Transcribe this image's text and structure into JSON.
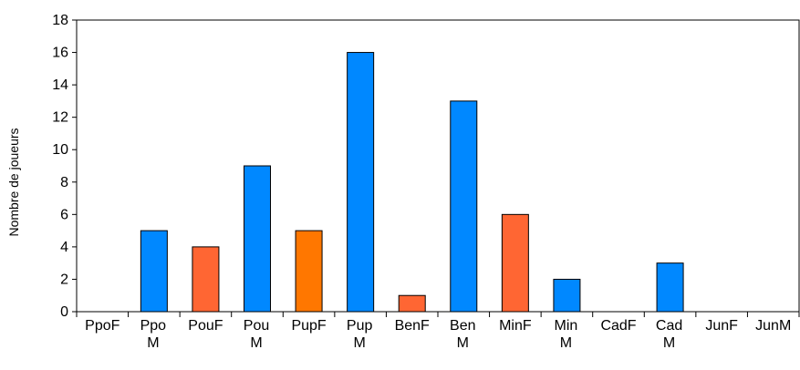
{
  "chart_data": {
    "type": "bar",
    "title": "",
    "xlabel": "",
    "ylabel": "Nombre de joueurs",
    "ylim": [
      0,
      18
    ],
    "yticks": [
      0,
      2,
      4,
      6,
      8,
      10,
      12,
      14,
      16,
      18
    ],
    "grid": false,
    "legend": "none",
    "categories": [
      [
        "PpoF"
      ],
      [
        "Ppo",
        "M"
      ],
      [
        "PouF"
      ],
      [
        "Pou",
        "M"
      ],
      [
        "PupF"
      ],
      [
        "Pup",
        "M"
      ],
      [
        "BenF"
      ],
      [
        "Ben",
        "M"
      ],
      [
        "MinF"
      ],
      [
        "Min",
        "M"
      ],
      [
        "CadF"
      ],
      [
        "Cad",
        "M"
      ],
      [
        "JunF"
      ],
      [
        "JunM"
      ]
    ],
    "values": [
      0,
      5,
      4,
      9,
      5,
      16,
      1,
      13,
      6,
      2,
      0,
      3,
      0,
      0
    ],
    "colors": [
      "#0088ff",
      "#0088ff",
      "#ff6633",
      "#0088ff",
      "#ff7700",
      "#0088ff",
      "#ff6633",
      "#0088ff",
      "#ff6633",
      "#0088ff",
      "#0088ff",
      "#0088ff",
      "#0088ff",
      "#0088ff"
    ]
  }
}
